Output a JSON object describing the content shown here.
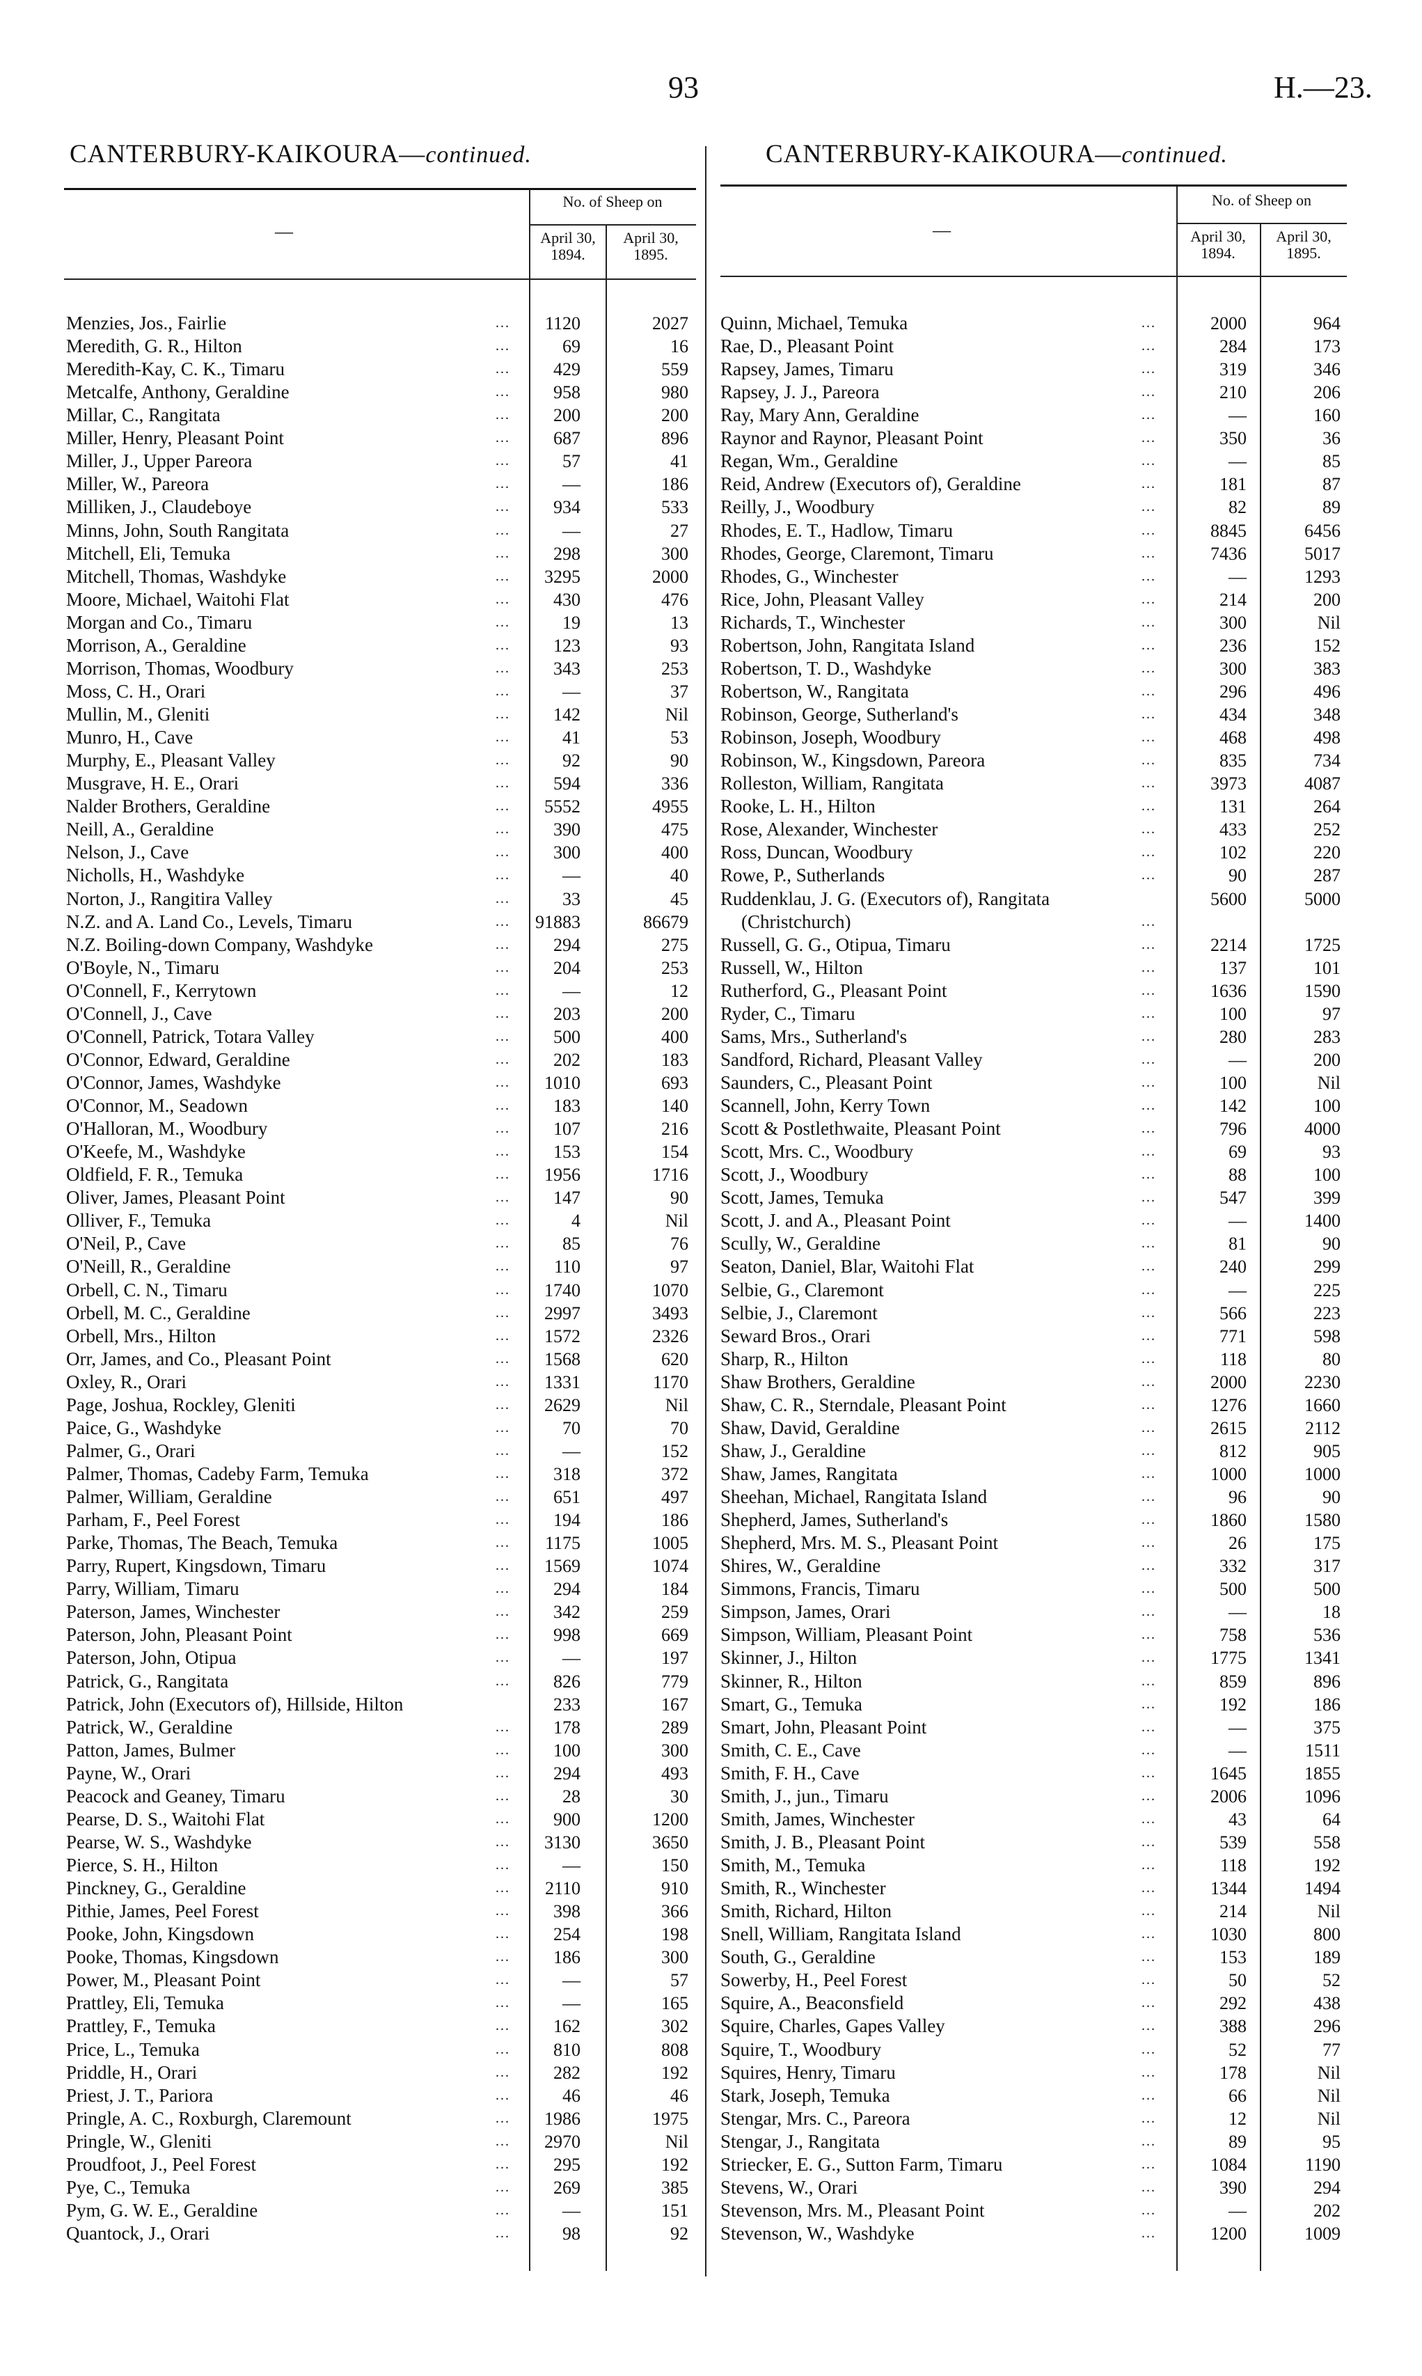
{
  "page": {
    "number": "93",
    "reference": "H.—23."
  },
  "left": {
    "title_main": "CANTERBURY-KAIKOURA—",
    "title_italic": "continued.",
    "header": {
      "name_col": "—",
      "group": "No. of Sheep on",
      "col1": "April 30, 1894.",
      "col2": "April 30, 1895."
    },
    "rows": [
      [
        "Menzies, Jos., Fairlie",
        "1120",
        "2027"
      ],
      [
        "Meredith, G. R., Hilton",
        "69",
        "16"
      ],
      [
        "Meredith-Kay, C. K., Timaru",
        "429",
        "559"
      ],
      [
        "Metcalfe, Anthony, Geraldine",
        "958",
        "980"
      ],
      [
        "Millar, C., Rangitata",
        "200",
        "200"
      ],
      [
        "Miller, Henry, Pleasant Point",
        "687",
        "896"
      ],
      [
        "Miller, J., Upper Pareora",
        "57",
        "41"
      ],
      [
        "Miller, W., Pareora",
        "—",
        "186"
      ],
      [
        "Milliken, J., Claudeboye",
        "934",
        "533"
      ],
      [
        "Minns, John, South Rangitata",
        "—",
        "27"
      ],
      [
        "Mitchell, Eli, Temuka",
        "298",
        "300"
      ],
      [
        "Mitchell, Thomas, Washdyke",
        "3295",
        "2000"
      ],
      [
        "Moore, Michael, Waitohi Flat",
        "430",
        "476"
      ],
      [
        "Morgan and Co., Timaru",
        "19",
        "13"
      ],
      [
        "Morrison, A., Geraldine",
        "123",
        "93"
      ],
      [
        "Morrison, Thomas, Woodbury",
        "343",
        "253"
      ],
      [
        "Moss, C. H., Orari",
        "—",
        "37"
      ],
      [
        "Mullin, M., Gleniti",
        "142",
        "Nil"
      ],
      [
        "Munro, H., Cave",
        "41",
        "53"
      ],
      [
        "Murphy, E., Pleasant Valley",
        "92",
        "90"
      ],
      [
        "Musgrave, H. E., Orari",
        "594",
        "336"
      ],
      [
        "Nalder Brothers, Geraldine",
        "5552",
        "4955"
      ],
      [
        "Neill, A., Geraldine",
        "390",
        "475"
      ],
      [
        "Nelson, J., Cave",
        "300",
        "400"
      ],
      [
        "Nicholls, H., Washdyke",
        "—",
        "40"
      ],
      [
        "Norton, J., Rangitira Valley",
        "33",
        "45"
      ],
      [
        "N.Z. and A. Land Co., Levels, Timaru",
        "91883",
        "86679"
      ],
      [
        "N.Z. Boiling-down Company, Washdyke",
        "294",
        "275"
      ],
      [
        "O'Boyle, N., Timaru",
        "204",
        "253"
      ],
      [
        "O'Connell, F., Kerrytown",
        "—",
        "12"
      ],
      [
        "O'Connell, J., Cave",
        "203",
        "200"
      ],
      [
        "O'Connell, Patrick, Totara Valley",
        "500",
        "400"
      ],
      [
        "O'Connor, Edward, Geraldine",
        "202",
        "183"
      ],
      [
        "O'Connor, James, Washdyke",
        "1010",
        "693"
      ],
      [
        "O'Connor, M., Seadown",
        "183",
        "140"
      ],
      [
        "O'Halloran, M., Woodbury",
        "107",
        "216"
      ],
      [
        "O'Keefe, M., Washdyke",
        "153",
        "154"
      ],
      [
        "Oldfield, F. R., Temuka",
        "1956",
        "1716"
      ],
      [
        "Oliver, James, Pleasant Point",
        "147",
        "90"
      ],
      [
        "Olliver, F., Temuka",
        "4",
        "Nil"
      ],
      [
        "O'Neil, P., Cave",
        "85",
        "76"
      ],
      [
        "O'Neill, R., Geraldine",
        "110",
        "97"
      ],
      [
        "Orbell, C. N., Timaru",
        "1740",
        "1070"
      ],
      [
        "Orbell, M. C., Geraldine",
        "2997",
        "3493"
      ],
      [
        "Orbell, Mrs., Hilton",
        "1572",
        "2326"
      ],
      [
        "Orr, James, and Co., Pleasant Point",
        "1568",
        "620"
      ],
      [
        "Oxley, R., Orari",
        "1331",
        "1170"
      ],
      [
        "Page, Joshua, Rockley, Gleniti",
        "2629",
        "Nil"
      ],
      [
        "Paice, G., Washdyke",
        "70",
        "70"
      ],
      [
        "Palmer, G., Orari",
        "—",
        "152"
      ],
      [
        "Palmer, Thomas, Cadeby Farm, Temuka",
        "318",
        "372"
      ],
      [
        "Palmer, William, Geraldine",
        "651",
        "497"
      ],
      [
        "Parham, F., Peel Forest",
        "194",
        "186"
      ],
      [
        "Parke, Thomas, The Beach, Temuka",
        "1175",
        "1005"
      ],
      [
        "Parry, Rupert, Kingsdown, Timaru",
        "1569",
        "1074"
      ],
      [
        "Parry, William, Timaru",
        "294",
        "184"
      ],
      [
        "Paterson, James, Winchester",
        "342",
        "259"
      ],
      [
        "Paterson, John, Pleasant Point",
        "998",
        "669"
      ],
      [
        "Paterson, John, Otipua",
        "—",
        "197"
      ],
      [
        "Patrick, G., Rangitata",
        "826",
        "779"
      ],
      [
        "Patrick, John (Executors of), Hillside, Hilton",
        "233",
        "167"
      ],
      [
        "Patrick, W., Geraldine",
        "178",
        "289"
      ],
      [
        "Patton, James, Bulmer",
        "100",
        "300"
      ],
      [
        "Payne, W., Orari",
        "294",
        "493"
      ],
      [
        "Peacock and Geaney, Timaru",
        "28",
        "30"
      ],
      [
        "Pearse, D. S., Waitohi Flat",
        "900",
        "1200"
      ],
      [
        "Pearse, W. S., Washdyke",
        "3130",
        "3650"
      ],
      [
        "Pierce, S. H., Hilton",
        "—",
        "150"
      ],
      [
        "Pinckney, G., Geraldine",
        "2110",
        "910"
      ],
      [
        "Pithie, James, Peel Forest",
        "398",
        "366"
      ],
      [
        "Pooke, John, Kingsdown",
        "254",
        "198"
      ],
      [
        "Pooke, Thomas, Kingsdown",
        "186",
        "300"
      ],
      [
        "Power, M., Pleasant Point",
        "—",
        "57"
      ],
      [
        "Prattley, Eli, Temuka",
        "—",
        "165"
      ],
      [
        "Prattley, F., Temuka",
        "162",
        "302"
      ],
      [
        "Price, L., Temuka",
        "810",
        "808"
      ],
      [
        "Priddle, H., Orari",
        "282",
        "192"
      ],
      [
        "Priest, J. T., Pariora",
        "46",
        "46"
      ],
      [
        "Pringle, A. C., Roxburgh, Claremount",
        "1986",
        "1975"
      ],
      [
        "Pringle, W., Gleniti",
        "2970",
        "Nil"
      ],
      [
        "Proudfoot, J., Peel Forest",
        "295",
        "192"
      ],
      [
        "Pye, C., Temuka",
        "269",
        "385"
      ],
      [
        "Pym, G. W. E., Geraldine",
        "—",
        "151"
      ],
      [
        "Quantock, J., Orari",
        "98",
        "92"
      ]
    ]
  },
  "right": {
    "title_main": "CANTERBURY-KAIKOURA—",
    "title_italic": "continued.",
    "header": {
      "name_col": "—",
      "group": "No. of Sheep on",
      "col1": "April 30, 1894.",
      "col2": "April 30, 1895."
    },
    "rows": [
      [
        "Quinn, Michael, Temuka",
        "2000",
        "964"
      ],
      [
        "Rae, D., Pleasant Point",
        "284",
        "173"
      ],
      [
        "Rapsey, James, Timaru",
        "319",
        "346"
      ],
      [
        "Rapsey, J. J., Pareora",
        "210",
        "206"
      ],
      [
        "Ray, Mary Ann, Geraldine",
        "—",
        "160"
      ],
      [
        "Raynor and Raynor, Pleasant Point",
        "350",
        "36"
      ],
      [
        "Regan, Wm., Geraldine",
        "—",
        "85"
      ],
      [
        "Reid, Andrew (Executors of), Geraldine",
        "181",
        "87"
      ],
      [
        "Reilly, J., Woodbury",
        "82",
        "89"
      ],
      [
        "Rhodes, E. T., Hadlow, Timaru",
        "8845",
        "6456"
      ],
      [
        "Rhodes, George, Claremont, Timaru",
        "7436",
        "5017"
      ],
      [
        "Rhodes, G., Winchester",
        "—",
        "1293"
      ],
      [
        "Rice, John, Pleasant Valley",
        "214",
        "200"
      ],
      [
        "Richards, T., Winchester",
        "300",
        "Nil"
      ],
      [
        "Robertson, John, Rangitata Island",
        "236",
        "152"
      ],
      [
        "Robertson, T. D., Washdyke",
        "300",
        "383"
      ],
      [
        "Robertson, W., Rangitata",
        "296",
        "496"
      ],
      [
        "Robinson, George, Sutherland's",
        "434",
        "348"
      ],
      [
        "Robinson, Joseph, Woodbury",
        "468",
        "498"
      ],
      [
        "Robinson, W., Kingsdown, Pareora",
        "835",
        "734"
      ],
      [
        "Rolleston, William, Rangitata",
        "3973",
        "4087"
      ],
      [
        "Rooke, L. H., Hilton",
        "131",
        "264"
      ],
      [
        "Rose, Alexander, Winchester",
        "433",
        "252"
      ],
      [
        "Ross, Duncan, Woodbury",
        "102",
        "220"
      ],
      [
        "Rowe, P., Sutherlands",
        "90",
        "287"
      ],
      [
        "Ruddenklau, J. G. (Executors of), Rangitata",
        "5600",
        "5000"
      ],
      [
        "(Christchurch)",
        "",
        ""
      ],
      [
        "Russell, G. G., Otipua, Timaru",
        "2214",
        "1725"
      ],
      [
        "Russell, W., Hilton",
        "137",
        "101"
      ],
      [
        "Rutherford, G., Pleasant Point",
        "1636",
        "1590"
      ],
      [
        "Ryder, C., Timaru",
        "100",
        "97"
      ],
      [
        "Sams, Mrs., Sutherland's",
        "280",
        "283"
      ],
      [
        "Sandford, Richard, Pleasant Valley",
        "—",
        "200"
      ],
      [
        "Saunders, C., Pleasant Point",
        "100",
        "Nil"
      ],
      [
        "Scannell, John, Kerry Town",
        "142",
        "100"
      ],
      [
        "Scott & Postlethwaite, Pleasant Point",
        "796",
        "4000"
      ],
      [
        "Scott, Mrs. C., Woodbury",
        "69",
        "93"
      ],
      [
        "Scott, J., Woodbury",
        "88",
        "100"
      ],
      [
        "Scott, James, Temuka",
        "547",
        "399"
      ],
      [
        "Scott, J. and A., Pleasant Point",
        "—",
        "1400"
      ],
      [
        "Scully, W., Geraldine",
        "81",
        "90"
      ],
      [
        "Seaton, Daniel, Blar, Waitohi Flat",
        "240",
        "299"
      ],
      [
        "Selbie, G., Claremont",
        "—",
        "225"
      ],
      [
        "Selbie, J., Claremont",
        "566",
        "223"
      ],
      [
        "Seward Bros., Orari",
        "771",
        "598"
      ],
      [
        "Sharp, R., Hilton",
        "118",
        "80"
      ],
      [
        "Shaw Brothers, Geraldine",
        "2000",
        "2230"
      ],
      [
        "Shaw, C. R., Sterndale, Pleasant Point",
        "1276",
        "1660"
      ],
      [
        "Shaw, David, Geraldine",
        "2615",
        "2112"
      ],
      [
        "Shaw, J., Geraldine",
        "812",
        "905"
      ],
      [
        "Shaw, James, Rangitata",
        "1000",
        "1000"
      ],
      [
        "Sheehan, Michael, Rangitata Island",
        "96",
        "90"
      ],
      [
        "Shepherd, James, Sutherland's",
        "1860",
        "1580"
      ],
      [
        "Shepherd, Mrs. M. S., Pleasant Point",
        "26",
        "175"
      ],
      [
        "Shires, W., Geraldine",
        "332",
        "317"
      ],
      [
        "Simmons, Francis, Timaru",
        "500",
        "500"
      ],
      [
        "Simpson, James, Orari",
        "—",
        "18"
      ],
      [
        "Simpson, William, Pleasant Point",
        "758",
        "536"
      ],
      [
        "Skinner, J., Hilton",
        "1775",
        "1341"
      ],
      [
        "Skinner, R., Hilton",
        "859",
        "896"
      ],
      [
        "Smart, G., Temuka",
        "192",
        "186"
      ],
      [
        "Smart, John, Pleasant Point",
        "—",
        "375"
      ],
      [
        "Smith, C. E., Cave",
        "—",
        "1511"
      ],
      [
        "Smith, F. H., Cave",
        "1645",
        "1855"
      ],
      [
        "Smith, J., jun., Timaru",
        "2006",
        "1096"
      ],
      [
        "Smith, James, Winchester",
        "43",
        "64"
      ],
      [
        "Smith, J. B., Pleasant Point",
        "539",
        "558"
      ],
      [
        "Smith, M., Temuka",
        "118",
        "192"
      ],
      [
        "Smith, R., Winchester",
        "1344",
        "1494"
      ],
      [
        "Smith, Richard, Hilton",
        "214",
        "Nil"
      ],
      [
        "Snell, William, Rangitata Island",
        "1030",
        "800"
      ],
      [
        "South, G., Geraldine",
        "153",
        "189"
      ],
      [
        "Sowerby, H., Peel Forest",
        "50",
        "52"
      ],
      [
        "Squire, A., Beaconsfield",
        "292",
        "438"
      ],
      [
        "Squire, Charles, Gapes Valley",
        "388",
        "296"
      ],
      [
        "Squire, T., Woodbury",
        "52",
        "77"
      ],
      [
        "Squires, Henry, Timaru",
        "178",
        "Nil"
      ],
      [
        "Stark, Joseph, Temuka",
        "66",
        "Nil"
      ],
      [
        "Stengar, Mrs. C., Pareora",
        "12",
        "Nil"
      ],
      [
        "Stengar, J., Rangitata",
        "89",
        "95"
      ],
      [
        "Striecker, E. G., Sutton Farm, Timaru",
        "1084",
        "1190"
      ],
      [
        "Stevens, W., Orari",
        "390",
        "294"
      ],
      [
        "Stevenson, Mrs. M., Pleasant Point",
        "—",
        "202"
      ],
      [
        "Stevenson, W., Washdyke",
        "1200",
        "1009"
      ]
    ]
  }
}
